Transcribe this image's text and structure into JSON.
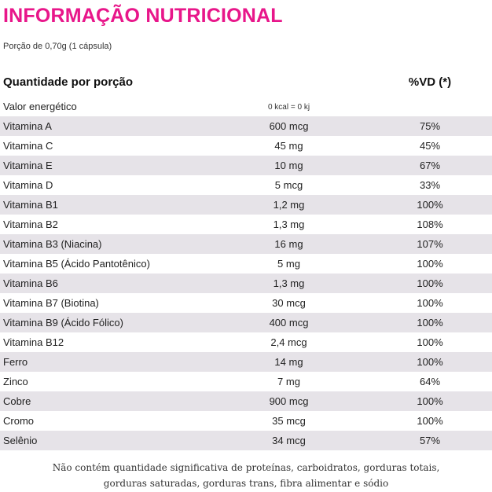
{
  "title": "INFORMAÇÃO NUTRICIONAL",
  "portion": "Porção de 0,70g (1 cápsula)",
  "header": {
    "quantity_label": "Quantidade por porção",
    "vd_label": "%VD (*)"
  },
  "energy": {
    "label": "Valor energético",
    "amount": "0 kcal = 0 kj"
  },
  "rows": [
    {
      "name": "Vitamina A",
      "amount": "600 mcg",
      "vd": "75%"
    },
    {
      "name": "Vitamina C",
      "amount": "45 mg",
      "vd": "45%"
    },
    {
      "name": "Vitamina E",
      "amount": "10 mg",
      "vd": "67%"
    },
    {
      "name": "Vitamina D",
      "amount": "5 mcg",
      "vd": "33%"
    },
    {
      "name": "Vitamina B1",
      "amount": "1,2 mg",
      "vd": "100%"
    },
    {
      "name": "Vitamina B2",
      "amount": "1,3 mg",
      "vd": "108%"
    },
    {
      "name": "Vitamina B3 (Niacina)",
      "amount": "16 mg",
      "vd": "107%"
    },
    {
      "name": "Vitamina B5 (Ácido Pantotênico)",
      "amount": "5 mg",
      "vd": "100%"
    },
    {
      "name": "Vitamina B6",
      "amount": "1,3 mg",
      "vd": "100%"
    },
    {
      "name": "Vitamina B7 (Biotina)",
      "amount": "30 mcg",
      "vd": "100%"
    },
    {
      "name": "Vitamina B9 (Ácido Fólico)",
      "amount": "400 mcg",
      "vd": "100%"
    },
    {
      "name": "Vitamina B12",
      "amount": "2,4 mcg",
      "vd": "100%"
    },
    {
      "name": "Ferro",
      "amount": "14 mg",
      "vd": "100%"
    },
    {
      "name": "Zinco",
      "amount": "7 mg",
      "vd": "64%"
    },
    {
      "name": "Cobre",
      "amount": "900 mcg",
      "vd": "100%"
    },
    {
      "name": "Cromo",
      "amount": "35 mcg",
      "vd": "100%"
    },
    {
      "name": "Selênio",
      "amount": "34 mcg",
      "vd": "57%"
    }
  ],
  "footnote": {
    "line1": "Não contém quantidade significativa de proteínas, carboidratos, gorduras totais,",
    "line2": "gorduras saturadas, gorduras trans, fibra alimentar e sódio"
  },
  "colors": {
    "title": "#e8168a",
    "row_shade": "#e6e3e8",
    "text": "#222222"
  }
}
